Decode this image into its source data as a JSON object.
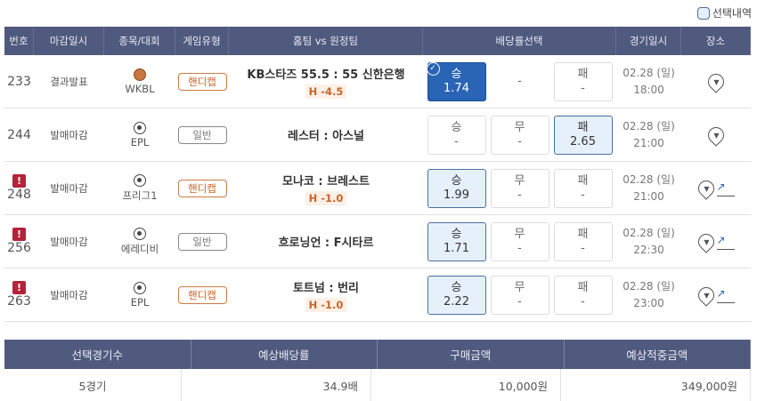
{
  "selection_history": "선택내역",
  "headers": [
    "번호",
    "마감일시",
    "종목/대회",
    "게임유형",
    "홈팀 vs 원정팀",
    "배당률선택",
    "경기일시",
    "장소"
  ],
  "rows": [
    {
      "no": "233",
      "warn": false,
      "status": "결과발표",
      "sport": "basketball",
      "league": "WKBL",
      "type": "핸디캡",
      "match": "KB스타즈 55.5 : 55 신한은행",
      "handicap": "H -4.5",
      "odds": [
        {
          "label": "승",
          "value": "1.74",
          "state": "selected"
        },
        {
          "label": "",
          "value": "-",
          "state": "dash"
        },
        {
          "label": "패",
          "value": "-",
          "state": "normal"
        }
      ],
      "date": "02.28 (일)",
      "time": "18:00",
      "trend": false
    },
    {
      "no": "244",
      "warn": false,
      "status": "발매마감",
      "sport": "soccer",
      "league": "EPL",
      "type": "일반",
      "match": "레스터 : 아스널",
      "handicap": "",
      "odds": [
        {
          "label": "승",
          "value": "-",
          "state": "normal"
        },
        {
          "label": "무",
          "value": "-",
          "state": "normal"
        },
        {
          "label": "패",
          "value": "2.65",
          "state": "highlight"
        }
      ],
      "date": "02.28 (일)",
      "time": "21:00",
      "trend": false
    },
    {
      "no": "248",
      "warn": true,
      "status": "발매마감",
      "sport": "soccer",
      "league": "프리그1",
      "type": "핸디캡",
      "match": "모나코 : 브레스트",
      "handicap": "H -1.0",
      "odds": [
        {
          "label": "승",
          "value": "1.99",
          "state": "highlight"
        },
        {
          "label": "무",
          "value": "-",
          "state": "normal"
        },
        {
          "label": "패",
          "value": "-",
          "state": "normal"
        }
      ],
      "date": "02.28 (일)",
      "time": "21:00",
      "trend": true
    },
    {
      "no": "256",
      "warn": true,
      "status": "발매마감",
      "sport": "soccer",
      "league": "에레디비",
      "type": "일반",
      "match": "흐로닝언 : F시타르",
      "handicap": "",
      "odds": [
        {
          "label": "승",
          "value": "1.71",
          "state": "highlight"
        },
        {
          "label": "무",
          "value": "-",
          "state": "normal"
        },
        {
          "label": "패",
          "value": "-",
          "state": "normal"
        }
      ],
      "date": "02.28 (일)",
      "time": "22:30",
      "trend": true
    },
    {
      "no": "263",
      "warn": true,
      "status": "발매마감",
      "sport": "soccer",
      "league": "EPL",
      "type": "핸디캡",
      "match": "토트넘 : 번리",
      "handicap": "H -1.0",
      "odds": [
        {
          "label": "승",
          "value": "2.22",
          "state": "highlight"
        },
        {
          "label": "무",
          "value": "-",
          "state": "normal"
        },
        {
          "label": "패",
          "value": "-",
          "state": "normal"
        }
      ],
      "date": "02.28 (일)",
      "time": "23:00",
      "trend": true
    }
  ],
  "summary": {
    "headers": [
      "선택경기수",
      "예상배당률",
      "구매금액",
      "예상적중금액"
    ],
    "values": [
      "5경기",
      "34.9배",
      "10,000원",
      "349,000원"
    ]
  },
  "colors": {
    "header": "#4f5a7e",
    "selected": "#2a64b5",
    "highlight": "#e6f0fb",
    "warning": "#b5223a",
    "handicap": "#c8652b"
  }
}
